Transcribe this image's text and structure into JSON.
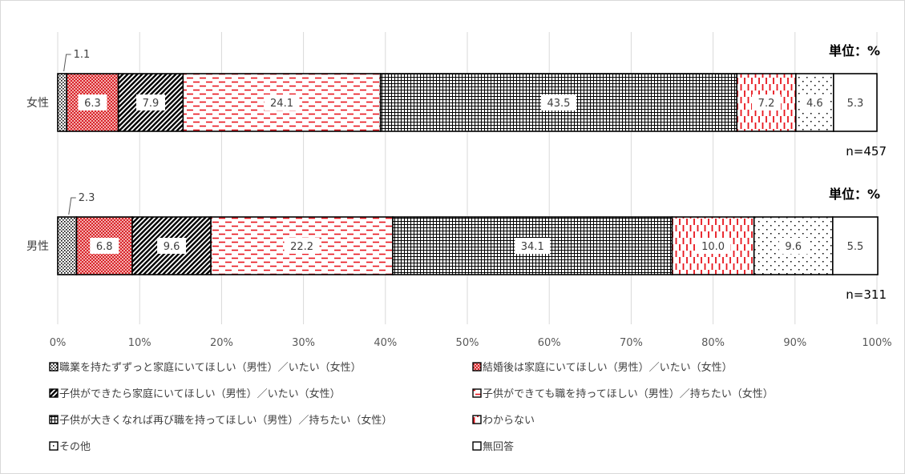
{
  "chart_data": {
    "type": "bar",
    "orientation": "horizontal",
    "stacked": true,
    "unit_label": "単位：%",
    "categories": [
      "女性",
      "男性"
    ],
    "sample_sizes": [
      "n=457",
      "n=311"
    ],
    "x_ticks": [
      "0%",
      "10%",
      "20%",
      "30%",
      "40%",
      "50%",
      "60%",
      "70%",
      "80%",
      "90%",
      "100%"
    ],
    "xlim": [
      0,
      100
    ],
    "grid": true,
    "legend_position": "bottom",
    "series": [
      {
        "name": "職業を持たずずっと家庭にいてほしい（男性）／いたい（女性）",
        "values": [
          1.1,
          2.3
        ],
        "labels": [
          "1.1",
          "2.3"
        ],
        "pattern": "dots-dense",
        "color": "#000000"
      },
      {
        "name": "結婚後は家庭にいてほしい（男性）／いたい（女性）",
        "values": [
          6.3,
          6.8
        ],
        "labels": [
          "6.3",
          "6.8"
        ],
        "pattern": "red-check",
        "color": "#d9232a"
      },
      {
        "name": "子供ができたら家庭にいてほしい（男性）／いたい（女性）",
        "values": [
          7.9,
          9.6
        ],
        "labels": [
          "7.9",
          "9.6"
        ],
        "pattern": "diag-black",
        "color": "#000000"
      },
      {
        "name": "子供ができても職を持ってほしい（男性）／持ちたい（女性）",
        "values": [
          24.1,
          22.2
        ],
        "labels": [
          "24.1",
          "22.2"
        ],
        "pattern": "red-dash-h",
        "color": "#e8141c"
      },
      {
        "name": "子供が大きくなれば再び職を持ってほしい（男性）／持ちたい（女性）",
        "values": [
          43.5,
          34.1
        ],
        "labels": [
          "43.5",
          "34.1"
        ],
        "pattern": "grid-black",
        "color": "#000000"
      },
      {
        "name": "わからない",
        "values": [
          7.2,
          10.0
        ],
        "labels": [
          "7.2",
          "10.0"
        ],
        "pattern": "red-dash-v",
        "color": "#e8141c"
      },
      {
        "name": "その他",
        "values": [
          4.6,
          9.6
        ],
        "labels": [
          "4.6",
          "9.6"
        ],
        "pattern": "dots-sparse",
        "color": "#000000"
      },
      {
        "name": "無回答",
        "values": [
          5.3,
          5.5
        ],
        "labels": [
          "5.3",
          "5.5"
        ],
        "pattern": "none",
        "color": "#ffffff"
      }
    ]
  }
}
